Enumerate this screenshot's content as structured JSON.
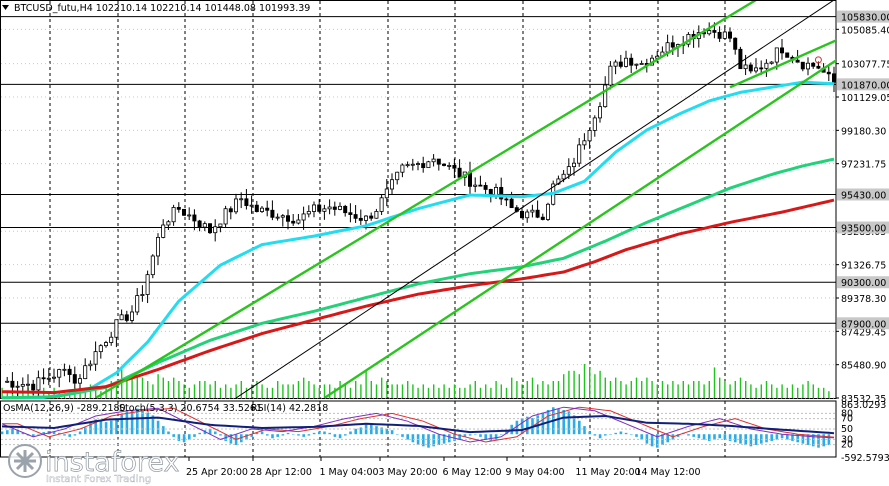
{
  "header": {
    "symbol_line": "BTCUSD_futu,H4  102210.14 102210.14 101448.08 101993.39"
  },
  "watermark": {
    "brand": "instaforex",
    "tagline": "Instant Forex Trading"
  },
  "chart_data": [
    {
      "type": "candlestick",
      "title": "BTCUSD_futu,H4",
      "ohlc_last": {
        "open": 102210.14,
        "high": 102210.14,
        "low": 101448.08,
        "close": 101993.39
      },
      "x_tick_labels": [
        "25 Apr 20:00",
        "28 Apr 12:00",
        "1 May 04:00",
        "3 May 20:00",
        "6 May 12:00",
        "9 May 04:00",
        "11 May 20:00",
        "14 May 12:00"
      ],
      "y_tick_labels": [
        "105085.40",
        "103077.75",
        "101129.05",
        "99180.30",
        "97231.75",
        "93283.05",
        "91326.75",
        "89378.30",
        "87429.45",
        "85480.90",
        "83532.35"
      ],
      "ylim": [
        83532.35,
        106800
      ],
      "price_levels": [
        105830,
        101870,
        95430,
        93500,
        90300,
        87900
      ],
      "price_level_labels": [
        "105830.00",
        "101870.00",
        "95430.00",
        "93500.00",
        "90300.00",
        "87900.00"
      ],
      "close_path_keypoints": [
        [
          0,
          84500
        ],
        [
          6,
          84300
        ],
        [
          10,
          84900
        ],
        [
          13,
          85200
        ],
        [
          14,
          84400
        ],
        [
          18,
          86200
        ],
        [
          22,
          87800
        ],
        [
          25,
          88600
        ],
        [
          27,
          89800
        ],
        [
          29,
          91800
        ],
        [
          31,
          93800
        ],
        [
          34,
          94600
        ],
        [
          37,
          94000
        ],
        [
          40,
          93300
        ],
        [
          42,
          94000
        ],
        [
          46,
          95200
        ],
        [
          49,
          94500
        ],
        [
          53,
          94300
        ],
        [
          57,
          94000
        ],
        [
          60,
          94500
        ],
        [
          63,
          94700
        ],
        [
          67,
          94300
        ],
        [
          70,
          94000
        ],
        [
          72,
          94600
        ],
        [
          74,
          95500
        ],
        [
          77,
          96900
        ],
        [
          80,
          97200
        ],
        [
          83,
          97600
        ],
        [
          85,
          97200
        ],
        [
          88,
          96600
        ],
        [
          92,
          95900
        ],
        [
          95,
          95500
        ],
        [
          98,
          94600
        ],
        [
          101,
          94200
        ],
        [
          104,
          94300
        ],
        [
          106,
          95900
        ],
        [
          109,
          96800
        ],
        [
          111,
          98100
        ],
        [
          113,
          99500
        ],
        [
          115,
          100900
        ],
        [
          117,
          102700
        ],
        [
          120,
          103400
        ],
        [
          123,
          103100
        ],
        [
          126,
          103700
        ],
        [
          129,
          104300
        ],
        [
          132,
          104700
        ],
        [
          135,
          105100
        ],
        [
          138,
          104900
        ],
        [
          140,
          104600
        ],
        [
          142,
          102900
        ],
        [
          144,
          102500
        ],
        [
          147,
          103200
        ],
        [
          150,
          104000
        ],
        [
          152,
          103500
        ],
        [
          154,
          103100
        ],
        [
          157,
          102900
        ],
        [
          159,
          102200
        ],
        [
          160,
          101990
        ]
      ],
      "moving_averages": [
        {
          "color": "#22dcf0",
          "keypoints": [
            [
              0,
              83540
            ],
            [
              8,
              83560
            ],
            [
              16,
              83900
            ],
            [
              22,
              85000
            ],
            [
              28,
              86800
            ],
            [
              34,
              89200
            ],
            [
              42,
              91300
            ],
            [
              50,
              92500
            ],
            [
              60,
              93000
            ],
            [
              70,
              93600
            ],
            [
              80,
              94600
            ],
            [
              90,
              95400
            ],
            [
              100,
              95300
            ],
            [
              106,
              95500
            ],
            [
              112,
              96200
            ],
            [
              118,
              97900
            ],
            [
              124,
              99200
            ],
            [
              130,
              100100
            ],
            [
              136,
              100900
            ],
            [
              142,
              101400
            ],
            [
              148,
              101700
            ],
            [
              154,
              102000
            ],
            [
              160,
              101900
            ]
          ]
        },
        {
          "color": "#22d278",
          "keypoints": [
            [
              0,
              83545
            ],
            [
              10,
              83600
            ],
            [
              20,
              84150
            ],
            [
              30,
              85600
            ],
            [
              40,
              86900
            ],
            [
              50,
              87900
            ],
            [
              60,
              88600
            ],
            [
              70,
              89400
            ],
            [
              80,
              90200
            ],
            [
              90,
              90800
            ],
            [
              100,
              91200
            ],
            [
              108,
              91700
            ],
            [
              116,
              92700
            ],
            [
              124,
              93800
            ],
            [
              132,
              94800
            ],
            [
              140,
              95800
            ],
            [
              148,
              96600
            ],
            [
              154,
              97100
            ],
            [
              160,
              97500
            ]
          ]
        },
        {
          "color": "#d81818",
          "keypoints": [
            [
              0,
              83900
            ],
            [
              10,
              83850
            ],
            [
              20,
              84200
            ],
            [
              30,
              85200
            ],
            [
              40,
              86300
            ],
            [
              50,
              87300
            ],
            [
              60,
              88100
            ],
            [
              70,
              88900
            ],
            [
              80,
              89600
            ],
            [
              90,
              90100
            ],
            [
              100,
              90500
            ],
            [
              108,
              90900
            ],
            [
              114,
              91500
            ],
            [
              120,
              92200
            ],
            [
              130,
              93100
            ],
            [
              140,
              93800
            ],
            [
              150,
              94400
            ],
            [
              160,
              95100
            ]
          ]
        }
      ],
      "trend_channels": [
        {
          "color": "#2ac41e",
          "points": [
            [
              18,
              83532.35
            ],
            [
              145,
              106800
            ]
          ]
        },
        {
          "color": "#2ac41e",
          "points": [
            [
              62,
              83532.35
            ],
            [
              178,
              106800
            ]
          ]
        },
        {
          "color": "#2ac41e",
          "points": [
            [
              140,
              101700
            ],
            [
              178,
              106800
            ]
          ]
        },
        {
          "color": "#000000",
          "points": [
            [
              45,
              83532.35
            ],
            [
              160,
              106800
            ]
          ]
        }
      ],
      "volume_bars": [
        3,
        2,
        2,
        2,
        2,
        3,
        2,
        2,
        3,
        2,
        3,
        2,
        2,
        2,
        3,
        3,
        3,
        4,
        4,
        2,
        3,
        5,
        4,
        9,
        6,
        7,
        6,
        6,
        5,
        4,
        7,
        6,
        5,
        6,
        5,
        4,
        3,
        4,
        5,
        5,
        4,
        5,
        3,
        4,
        3,
        4,
        5,
        3,
        4,
        5,
        4,
        3,
        3,
        5,
        4,
        4,
        4,
        5,
        6,
        5,
        4,
        3,
        4,
        4,
        3,
        5,
        4,
        3,
        5,
        4,
        8,
        5,
        4,
        6,
        5,
        4,
        4,
        4,
        5,
        4,
        3,
        4,
        3,
        4,
        3,
        4,
        3,
        4,
        3,
        3,
        4,
        5,
        3,
        4,
        3,
        5,
        4,
        3,
        6,
        5,
        4,
        5,
        6,
        4,
        5,
        4,
        5,
        5,
        7,
        8,
        8,
        7,
        10,
        9,
        7,
        8,
        6,
        5,
        6,
        5,
        4,
        5,
        6,
        5,
        6,
        5,
        4,
        5,
        4,
        5,
        4,
        5,
        4,
        5,
        5,
        4,
        5,
        9,
        6,
        5,
        4,
        5,
        6,
        5,
        4,
        3,
        4,
        5,
        4,
        3,
        4,
        3,
        4,
        3,
        4,
        5,
        4,
        3,
        3,
        2
      ]
    },
    {
      "type": "oscillator",
      "indicator_labels": [
        "OsMA(12,26,9) -289.2180",
        "Stoch(5,3,3) 20.6754 33.5261",
        "RSI(14) 42.2818"
      ],
      "y_tick_labels": [
        "863.0293",
        "80",
        "70",
        "50",
        "30",
        "20",
        "-592.5793"
      ],
      "ylim": [
        -592.5793,
        863.0293
      ],
      "osma_bars": [
        0.1,
        0.15,
        0.2,
        0.15,
        0.05,
        -0.05,
        -0.1,
        0.0,
        0.08,
        0.12,
        0.1,
        0.05,
        -0.05,
        -0.1,
        -0.05,
        0.1,
        0.25,
        0.45,
        0.55,
        0.5,
        0.45,
        0.5,
        0.6,
        0.72,
        0.85,
        0.9,
        0.95,
        0.9,
        0.8,
        0.7,
        0.5,
        0.3,
        0.1,
        -0.1,
        -0.25,
        -0.3,
        -0.2,
        -0.1,
        0.05,
        0.15,
        0.2,
        0.1,
        -0.05,
        -0.25,
        -0.35,
        -0.4,
        -0.3,
        -0.2,
        -0.1,
        0.05,
        0.1,
        -0.05,
        -0.15,
        -0.1,
        -0.05,
        0.05,
        0.0,
        -0.05,
        -0.1,
        -0.05,
        0.05,
        0.1,
        0.1,
        0.05,
        -0.1,
        -0.15,
        -0.05,
        0.1,
        0.2,
        0.25,
        0.35,
        0.4,
        0.3,
        0.25,
        0.2,
        0.15,
        0.0,
        -0.1,
        -0.2,
        -0.3,
        -0.4,
        -0.45,
        -0.5,
        -0.45,
        -0.4,
        -0.35,
        -0.3,
        -0.25,
        -0.2,
        -0.1,
        -0.05,
        0.0,
        -0.1,
        -0.2,
        -0.25,
        -0.2,
        0.0,
        0.15,
        0.35,
        0.5,
        0.6,
        0.65,
        0.6,
        0.7,
        0.8,
        0.9,
        1.0,
        0.95,
        0.9,
        0.85,
        0.7,
        0.5,
        0.3,
        0.1,
        -0.05,
        -0.15,
        -0.05,
        0.0,
        0.05,
        0.1,
        0.05,
        0.0,
        -0.1,
        -0.2,
        -0.35,
        -0.45,
        -0.5,
        -0.4,
        -0.3,
        -0.2,
        -0.1,
        0.05,
        -0.05,
        -0.1,
        -0.15,
        -0.2,
        -0.25,
        -0.2,
        -0.15,
        -0.2,
        -0.25,
        -0.3,
        -0.35,
        -0.4,
        -0.45,
        -0.4,
        -0.35,
        -0.3,
        -0.25,
        -0.2,
        -0.15,
        -0.2,
        -0.25,
        -0.3,
        -0.35,
        -0.4,
        -0.45,
        -0.5,
        -0.45,
        -0.4
      ],
      "stoch_keypoints": [
        [
          0,
          60
        ],
        [
          6,
          35
        ],
        [
          12,
          50
        ],
        [
          18,
          75
        ],
        [
          24,
          85
        ],
        [
          30,
          90
        ],
        [
          36,
          60
        ],
        [
          42,
          30
        ],
        [
          48,
          50
        ],
        [
          54,
          45
        ],
        [
          60,
          55
        ],
        [
          66,
          70
        ],
        [
          72,
          80
        ],
        [
          78,
          65
        ],
        [
          84,
          40
        ],
        [
          90,
          25
        ],
        [
          96,
          35
        ],
        [
          102,
          75
        ],
        [
          108,
          92
        ],
        [
          114,
          85
        ],
        [
          120,
          60
        ],
        [
          126,
          35
        ],
        [
          132,
          55
        ],
        [
          138,
          70
        ],
        [
          144,
          50
        ],
        [
          150,
          40
        ],
        [
          156,
          35
        ],
        [
          160,
          33
        ]
      ],
      "rsi_keypoints": [
        [
          0,
          55
        ],
        [
          10,
          52
        ],
        [
          20,
          68
        ],
        [
          30,
          72
        ],
        [
          40,
          58
        ],
        [
          50,
          52
        ],
        [
          60,
          54
        ],
        [
          70,
          60
        ],
        [
          80,
          56
        ],
        [
          90,
          44
        ],
        [
          100,
          48
        ],
        [
          108,
          72
        ],
        [
          116,
          75
        ],
        [
          124,
          62
        ],
        [
          132,
          60
        ],
        [
          140,
          56
        ],
        [
          148,
          50
        ],
        [
          154,
          46
        ],
        [
          160,
          42
        ]
      ]
    }
  ]
}
